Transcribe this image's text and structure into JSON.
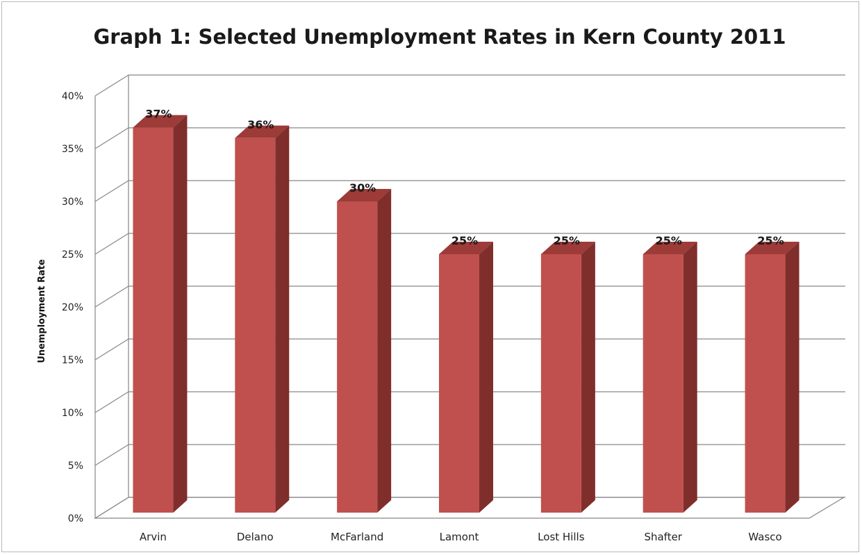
{
  "chart_data": {
    "type": "bar",
    "style": "3d-column",
    "title": "Graph 1: Selected Unemployment Rates in Kern County 2011",
    "xlabel": "",
    "ylabel": "Unemployment Rate",
    "categories": [
      "Arvin",
      "Delano",
      "McFarland",
      "Lamont",
      "Lost Hills",
      "Shafter",
      "Wasco"
    ],
    "values": [
      37,
      36,
      30,
      25,
      25,
      25,
      25
    ],
    "data_labels": [
      "37%",
      "36%",
      "30%",
      "25%",
      "25%",
      "25%",
      "25%"
    ],
    "ylim": [
      0,
      40
    ],
    "yticks": [
      0,
      5,
      10,
      15,
      20,
      25,
      30,
      35,
      40
    ],
    "ytick_labels": [
      "0%",
      "5%",
      "10%",
      "15%",
      "20%",
      "25%",
      "30%",
      "35%",
      "40%"
    ],
    "grid": true,
    "legend": "none",
    "colors": {
      "bar_front": "#c0504d",
      "bar_side": "#7f2e2c",
      "bar_top": "#9c3b38",
      "gridline": "#868686",
      "axis": "#868686"
    }
  }
}
